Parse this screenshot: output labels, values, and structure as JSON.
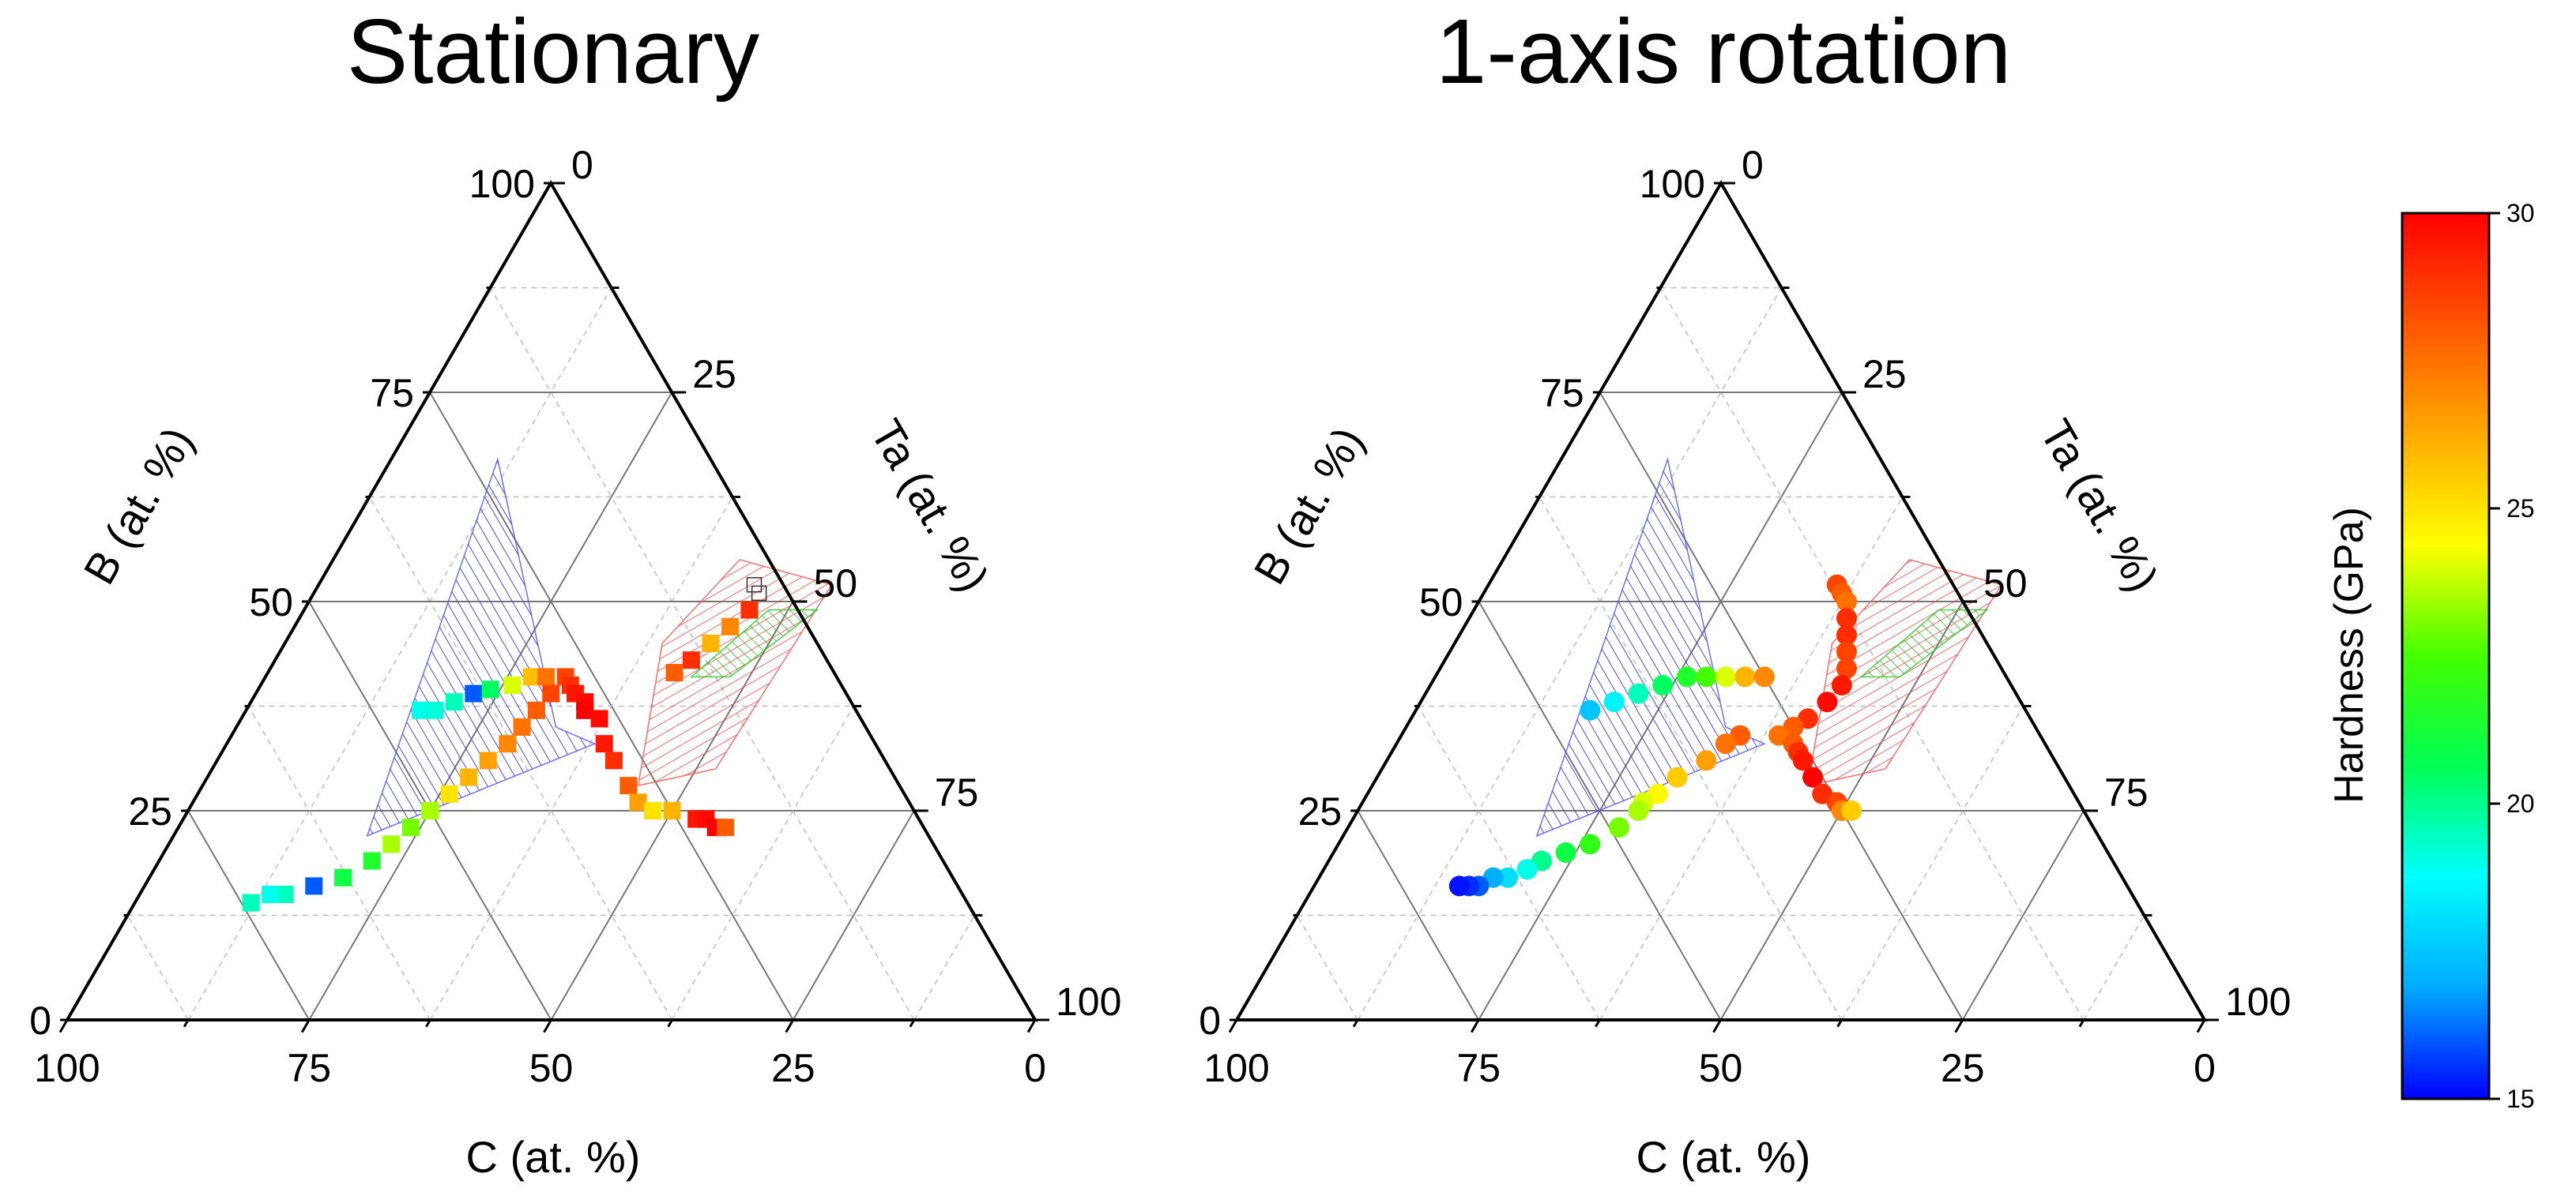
{
  "chart_data": [
    {
      "type": "ternary-scatter",
      "title": "Stationary",
      "marker": "square",
      "axes": {
        "B": {
          "label": "B (at. %)",
          "ticks": [
            "0",
            "25",
            "50",
            "75",
            "100"
          ]
        },
        "Ta": {
          "label": "Ta (at. %)",
          "ticks": [
            "0",
            "25",
            "50",
            "75",
            "100"
          ]
        },
        "C": {
          "label": "C (at. %)",
          "ticks": [
            "100",
            "75",
            "50",
            "25",
            "0"
          ]
        }
      },
      "regions": [
        {
          "name": "blue-hatched-region",
          "color": "#5555ee",
          "points": [
            [
              67,
              11,
              22
            ],
            [
              22,
              20,
              58
            ],
            [
              33,
              38,
              29
            ],
            [
              35,
              33,
              32
            ]
          ]
        },
        {
          "name": "red-hatched-region",
          "color": "#ee5555",
          "points": [
            [
              52,
              53,
              -5
            ],
            [
              30,
              52,
              18
            ],
            [
              28,
              45,
              27
            ],
            [
              45,
              39,
              16
            ],
            [
              55,
              42,
              3
            ]
          ]
        },
        {
          "name": "green-hatched-region",
          "color": "#22cc22",
          "points": [
            [
              49,
              48,
              3
            ],
            [
              41,
              44,
              15
            ],
            [
              41,
              48,
              11
            ],
            [
              49,
              53,
              -2
            ]
          ]
        }
      ],
      "open_markers": [
        [
          52,
          45
        ],
        [
          51,
          46
        ]
      ],
      "points": [
        {
          "B": 37,
          "Ta": 18,
          "h": 19.0
        },
        {
          "B": 37,
          "Ta": 19.5,
          "h": 19.2
        },
        {
          "B": 38,
          "Ta": 21,
          "h": 19.5
        },
        {
          "B": 39,
          "Ta": 22.5,
          "h": 16.0
        },
        {
          "B": 39.5,
          "Ta": 24,
          "h": 20.5
        },
        {
          "B": 40,
          "Ta": 26,
          "h": 24.0
        },
        {
          "B": 41,
          "Ta": 27.5,
          "h": 25.8
        },
        {
          "B": 41,
          "Ta": 29,
          "h": 27.5
        },
        {
          "B": 41,
          "Ta": 31,
          "h": 28.5
        },
        {
          "B": 40,
          "Ta": 32,
          "h": 29.0
        },
        {
          "B": 39,
          "Ta": 33,
          "h": 29.5
        },
        {
          "B": 38,
          "Ta": 34.5,
          "h": 29.8
        },
        {
          "B": 37,
          "Ta": 35,
          "h": 30.0
        },
        {
          "B": 36,
          "Ta": 37,
          "h": 29.8
        },
        {
          "B": 33,
          "Ta": 39,
          "h": 29.5
        },
        {
          "B": 31,
          "Ta": 41,
          "h": 29.0
        },
        {
          "B": 28,
          "Ta": 44,
          "h": 28.0
        },
        {
          "B": 26,
          "Ta": 46,
          "h": 26.5
        },
        {
          "B": 25,
          "Ta": 48,
          "h": 25.0
        },
        {
          "B": 25,
          "Ta": 50,
          "h": 26.0
        },
        {
          "B": 24,
          "Ta": 53,
          "h": 29.5
        },
        {
          "B": 24,
          "Ta": 54,
          "h": 29.8
        },
        {
          "B": 23,
          "Ta": 55.5,
          "h": 30.0
        },
        {
          "B": 23,
          "Ta": 56.5,
          "h": 28.0
        },
        {
          "B": 39,
          "Ta": 30.5,
          "h": 28.5
        },
        {
          "B": 37,
          "Ta": 30,
          "h": 28.0
        },
        {
          "B": 35,
          "Ta": 29.5,
          "h": 27.5
        },
        {
          "B": 33,
          "Ta": 29,
          "h": 27.0
        },
        {
          "B": 31,
          "Ta": 28,
          "h": 26.5
        },
        {
          "B": 29,
          "Ta": 27,
          "h": 26.0
        },
        {
          "B": 27,
          "Ta": 26,
          "h": 25.0
        },
        {
          "B": 25,
          "Ta": 25,
          "h": 23.5
        },
        {
          "B": 23,
          "Ta": 24,
          "h": 23.0
        },
        {
          "B": 21,
          "Ta": 23,
          "h": 23.5
        },
        {
          "B": 19,
          "Ta": 22,
          "h": 21.5
        },
        {
          "B": 17,
          "Ta": 20,
          "h": 21.0
        },
        {
          "B": 16,
          "Ta": 17.5,
          "h": 16.0
        },
        {
          "B": 15,
          "Ta": 15,
          "h": 19.5
        },
        {
          "B": 15,
          "Ta": 13.5,
          "h": 19.0
        },
        {
          "B": 14,
          "Ta": 12,
          "h": 19.5
        },
        {
          "B": 49,
          "Ta": 46,
          "h": 29.0
        },
        {
          "B": 47,
          "Ta": 45,
          "h": 27.0
        },
        {
          "B": 45,
          "Ta": 44,
          "h": 26.0
        },
        {
          "B": 43,
          "Ta": 43,
          "h": 29.0
        },
        {
          "B": 41.5,
          "Ta": 42,
          "h": 28.0
        }
      ]
    },
    {
      "type": "ternary-scatter",
      "title": "1-axis rotation",
      "marker": "circle",
      "axes": {
        "B": {
          "label": "B (at. %)",
          "ticks": [
            "0",
            "25",
            "50",
            "75",
            "100"
          ]
        },
        "Ta": {
          "label": "Ta (at. %)",
          "ticks": [
            "0",
            "25",
            "50",
            "75",
            "100"
          ]
        },
        "C": {
          "label": "C (at. %)",
          "ticks": [
            "100",
            "75",
            "50",
            "25",
            "0"
          ]
        }
      },
      "regions": [
        {
          "name": "blue-hatched-region",
          "color": "#5555ee",
          "points": [
            [
              67,
              11,
              22
            ],
            [
              22,
              20,
              58
            ],
            [
              33,
              38,
              29
            ],
            [
              35,
              33,
              32
            ]
          ]
        },
        {
          "name": "red-hatched-region",
          "color": "#ee5555",
          "points": [
            [
              52,
              53,
              -5
            ],
            [
              30,
              52,
              18
            ],
            [
              28,
              45,
              27
            ],
            [
              45,
              39,
              16
            ],
            [
              55,
              42,
              3
            ]
          ]
        },
        {
          "name": "green-hatched-region",
          "color": "#22cc22",
          "points": [
            [
              49,
              48,
              3
            ],
            [
              41,
              44,
              15
            ],
            [
              41,
              48,
              11
            ],
            [
              49,
              53,
              -2
            ]
          ]
        }
      ],
      "open_markers": [],
      "points": [
        {
          "B": 37,
          "Ta": 18,
          "h": 17.5
        },
        {
          "B": 38,
          "Ta": 20,
          "h": 18.5
        },
        {
          "B": 39,
          "Ta": 22,
          "h": 19.5
        },
        {
          "B": 40,
          "Ta": 24,
          "h": 20.5
        },
        {
          "B": 41,
          "Ta": 26,
          "h": 21.5
        },
        {
          "B": 41,
          "Ta": 28,
          "h": 22.5
        },
        {
          "B": 41,
          "Ta": 30,
          "h": 24.0
        },
        {
          "B": 41,
          "Ta": 32,
          "h": 26.0
        },
        {
          "B": 41,
          "Ta": 34,
          "h": 27.0
        },
        {
          "B": 52,
          "Ta": 36,
          "h": 28.5
        },
        {
          "B": 51,
          "Ta": 37,
          "h": 28.0
        },
        {
          "B": 50,
          "Ta": 38,
          "h": 27.5
        },
        {
          "B": 48,
          "Ta": 39,
          "h": 29.0
        },
        {
          "B": 46,
          "Ta": 40,
          "h": 29.0
        },
        {
          "B": 44,
          "Ta": 41,
          "h": 28.5
        },
        {
          "B": 42,
          "Ta": 42,
          "h": 28.5
        },
        {
          "B": 40,
          "Ta": 42.5,
          "h": 29.5
        },
        {
          "B": 38,
          "Ta": 42,
          "h": 29.8
        },
        {
          "B": 36,
          "Ta": 41,
          "h": 29.0
        },
        {
          "B": 35,
          "Ta": 40,
          "h": 28.0
        },
        {
          "B": 34,
          "Ta": 39,
          "h": 27.5
        },
        {
          "B": 33,
          "Ta": 41,
          "h": 28.0
        },
        {
          "B": 32,
          "Ta": 42,
          "h": 29.0
        },
        {
          "B": 31,
          "Ta": 43,
          "h": 29.5
        },
        {
          "B": 29,
          "Ta": 45,
          "h": 30.0
        },
        {
          "B": 27,
          "Ta": 47,
          "h": 29.0
        },
        {
          "B": 26,
          "Ta": 49,
          "h": 28.5
        },
        {
          "B": 25,
          "Ta": 50,
          "h": 27.0
        },
        {
          "B": 25,
          "Ta": 51,
          "h": 25.5
        },
        {
          "B": 34,
          "Ta": 35,
          "h": 28.0
        },
        {
          "B": 33,
          "Ta": 34,
          "h": 27.5
        },
        {
          "B": 31,
          "Ta": 33,
          "h": 26.5
        },
        {
          "B": 29,
          "Ta": 31,
          "h": 25.5
        },
        {
          "B": 27,
          "Ta": 30,
          "h": 24.5
        },
        {
          "B": 26,
          "Ta": 29,
          "h": 24.0
        },
        {
          "B": 25,
          "Ta": 29,
          "h": 23.5
        },
        {
          "B": 23,
          "Ta": 28,
          "h": 23.0
        },
        {
          "B": 21,
          "Ta": 26,
          "h": 22.0
        },
        {
          "B": 20,
          "Ta": 24,
          "h": 21.0
        },
        {
          "B": 19,
          "Ta": 22,
          "h": 20.0
        },
        {
          "B": 18,
          "Ta": 21,
          "h": 19.0
        },
        {
          "B": 17,
          "Ta": 19.5,
          "h": 18.0
        },
        {
          "B": 17,
          "Ta": 18,
          "h": 17.0
        },
        {
          "B": 16,
          "Ta": 17,
          "h": 16.0
        },
        {
          "B": 16,
          "Ta": 16,
          "h": 15.5
        },
        {
          "B": 16,
          "Ta": 15,
          "h": 15.2
        }
      ]
    }
  ],
  "colorbar": {
    "label": "Hardness (GPa)",
    "min": 15,
    "max": 30,
    "ticks": [
      15,
      20,
      25,
      30
    ],
    "tick_labels": [
      "15",
      "20",
      "25",
      "30"
    ],
    "colors": [
      "#0000ff",
      "#00aaff",
      "#00ffff",
      "#00ff55",
      "#44ff00",
      "#ffff00",
      "#ffaa00",
      "#ff5500",
      "#ff0000"
    ]
  }
}
